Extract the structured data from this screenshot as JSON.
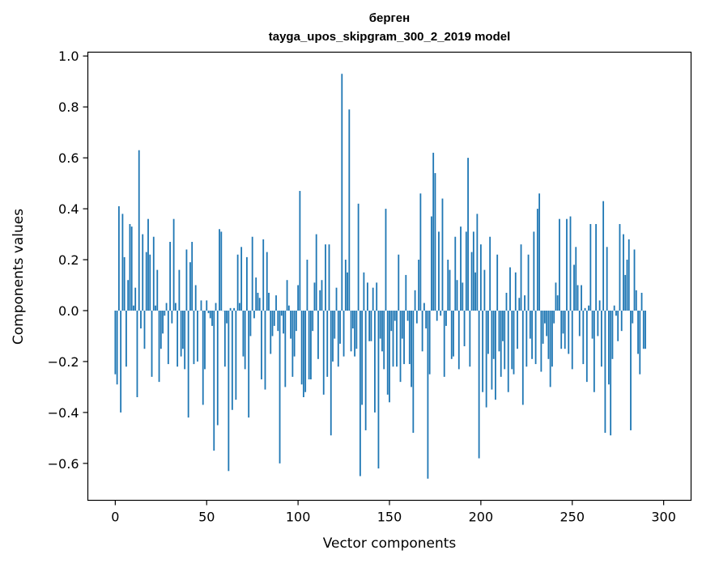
{
  "chart_data": {
    "type": "bar",
    "title": "берген",
    "subtitle": "tayga_upos_skipgram_300_2_2019 model",
    "xlabel": "Vector components",
    "ylabel": "Components values",
    "xlim": [
      -15,
      315
    ],
    "ylim": [
      -0.745,
      1.015
    ],
    "xticks": [
      0,
      50,
      100,
      150,
      200,
      250,
      300
    ],
    "xtick_labels": [
      "0",
      "50",
      "100",
      "150",
      "200",
      "250",
      "300"
    ],
    "yticks": [
      -0.6,
      -0.4,
      -0.2,
      0.0,
      0.2,
      0.4,
      0.6,
      0.8,
      1.0
    ],
    "ytick_labels": [
      "−0.6",
      "−0.4",
      "−0.2",
      "0.0",
      "0.2",
      "0.4",
      "0.6",
      "0.8",
      "1.0"
    ],
    "bar_color": "#1f77b4",
    "grid": false,
    "series": [
      {
        "name": "берген",
        "x_start": 0,
        "values": [
          -0.25,
          -0.29,
          0.41,
          -0.4,
          0.38,
          0.21,
          -0.22,
          0.12,
          0.34,
          0.33,
          0.02,
          0.09,
          -0.34,
          0.63,
          -0.07,
          0.3,
          -0.15,
          0.23,
          0.36,
          0.22,
          -0.26,
          0.29,
          0.02,
          0.16,
          -0.28,
          -0.15,
          -0.09,
          -0.02,
          0.03,
          -0.21,
          0.27,
          -0.05,
          0.36,
          0.03,
          -0.22,
          0.16,
          -0.18,
          -0.15,
          -0.23,
          0.24,
          -0.42,
          0.19,
          0.27,
          -0.21,
          0.1,
          -0.2,
          0.0,
          0.04,
          -0.37,
          -0.23,
          0.04,
          -0.01,
          -0.03,
          -0.06,
          -0.55,
          0.03,
          -0.45,
          0.32,
          0.31,
          0.0,
          -0.22,
          -0.05,
          -0.63,
          0.01,
          -0.39,
          0.01,
          -0.35,
          0.22,
          0.03,
          0.25,
          -0.18,
          -0.23,
          0.21,
          -0.42,
          -0.1,
          0.29,
          -0.03,
          0.13,
          0.07,
          0.05,
          -0.27,
          0.28,
          -0.31,
          0.23,
          0.07,
          -0.17,
          -0.1,
          -0.06,
          0.06,
          -0.08,
          -0.6,
          -0.02,
          -0.09,
          -0.3,
          0.12,
          0.02,
          -0.11,
          -0.26,
          -0.18,
          -0.08,
          0.1,
          0.47,
          -0.29,
          -0.34,
          -0.32,
          0.2,
          -0.27,
          -0.27,
          -0.08,
          0.11,
          0.3,
          -0.19,
          0.08,
          0.12,
          -0.33,
          0.26,
          -0.26,
          0.26,
          -0.49,
          -0.2,
          -0.11,
          0.09,
          -0.22,
          -0.13,
          0.93,
          -0.18,
          0.2,
          0.15,
          0.79,
          -0.16,
          -0.07,
          -0.18,
          -0.15,
          0.42,
          -0.65,
          -0.37,
          0.15,
          -0.47,
          0.11,
          -0.12,
          -0.12,
          0.09,
          -0.4,
          0.11,
          -0.62,
          -0.11,
          -0.16,
          -0.23,
          0.4,
          -0.33,
          -0.36,
          -0.08,
          -0.22,
          -0.04,
          -0.22,
          0.22,
          -0.28,
          -0.11,
          -0.21,
          0.14,
          -0.04,
          -0.21,
          -0.3,
          -0.48,
          0.08,
          -0.05,
          0.2,
          0.46,
          -0.16,
          0.03,
          -0.07,
          -0.66,
          -0.25,
          0.37,
          0.62,
          0.54,
          -0.04,
          0.31,
          -0.02,
          0.44,
          -0.26,
          -0.06,
          0.2,
          0.16,
          -0.19,
          -0.18,
          0.29,
          0.12,
          -0.23,
          0.33,
          0.11,
          -0.14,
          0.31,
          0.6,
          -0.22,
          0.23,
          0.31,
          0.15,
          0.38,
          -0.58,
          0.26,
          -0.32,
          0.16,
          -0.38,
          -0.17,
          0.29,
          -0.31,
          -0.19,
          -0.35,
          0.22,
          -0.16,
          -0.26,
          -0.12,
          -0.23,
          0.07,
          -0.32,
          0.17,
          -0.23,
          -0.25,
          0.15,
          -0.15,
          0.05,
          0.26,
          -0.37,
          0.06,
          -0.22,
          0.22,
          -0.11,
          -0.19,
          0.31,
          -0.21,
          0.4,
          0.46,
          -0.24,
          -0.13,
          -0.05,
          -0.1,
          -0.19,
          -0.3,
          -0.22,
          -0.05,
          0.11,
          0.06,
          0.36,
          -0.15,
          -0.09,
          -0.15,
          0.36,
          -0.17,
          0.37,
          -0.23,
          0.18,
          0.25,
          0.1,
          -0.1,
          0.1,
          -0.21,
          0.01,
          -0.28,
          0.02,
          0.34,
          -0.11,
          -0.32,
          0.34,
          -0.1,
          0.04,
          -0.22,
          0.43,
          -0.48,
          0.25,
          -0.29,
          -0.49,
          -0.19,
          0.02,
          -0.02,
          -0.12,
          0.34,
          -0.08,
          0.3,
          0.14,
          0.2,
          0.28,
          -0.47,
          -0.05,
          0.24,
          0.08,
          -0.17,
          -0.25,
          0.07,
          -0.15,
          -0.15
        ]
      }
    ]
  }
}
